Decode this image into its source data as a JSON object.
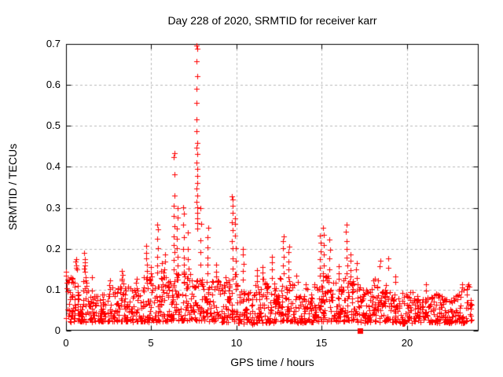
{
  "chart_data": {
    "type": "scatter",
    "title": "Day 228 of 2020, SRMTID for receiver karr",
    "xlabel": "GPS time / hours",
    "ylabel": "SRMTID / TECUs",
    "xlim": [
      0,
      24.2
    ],
    "ylim": [
      0,
      0.7
    ],
    "xticks": [
      0,
      5,
      10,
      15,
      20
    ],
    "xtick_labels": [
      "0",
      "5",
      "10",
      "15",
      "20"
    ],
    "yticks": [
      0,
      0.1,
      0.2,
      0.3,
      0.4,
      0.5,
      0.6,
      0.7
    ],
    "ytick_labels": [
      "0",
      "0.1",
      "0.2",
      "0.3",
      "0.4",
      "0.5",
      "0.6",
      "0.7"
    ],
    "grid": true,
    "legend": "none",
    "marker": "plus",
    "marker_color": "#ff0000",
    "grid_color": "#b9b9b9",
    "axis_color": "#000000",
    "background_color": "#ffffff",
    "outlier_point": {
      "x": 17.25,
      "y": 0,
      "marker": "filled-square",
      "color": "#ff0000"
    },
    "seed": 228,
    "spike_columns_format": "[x_hours, [y_values_TECUs...]]",
    "spike_columns": [
      [
        0.05,
        [
          0.105,
          0.115,
          0.125,
          0.135,
          0.145
        ]
      ],
      [
        0.3,
        [
          0.12,
          0.13
        ]
      ],
      [
        0.6,
        [
          0.148,
          0.154,
          0.161,
          0.168,
          0.173
        ]
      ],
      [
        1.08,
        [
          0.142,
          0.15,
          0.158,
          0.166,
          0.175,
          0.19
        ]
      ],
      [
        2.55,
        [
          0.112,
          0.122
        ]
      ],
      [
        3.3,
        [
          0.125,
          0.135,
          0.148
        ]
      ],
      [
        4.1,
        [
          0.115,
          0.126
        ]
      ],
      [
        4.72,
        [
          0.13,
          0.145,
          0.16,
          0.175,
          0.19,
          0.205
        ]
      ],
      [
        4.95,
        [
          0.125,
          0.14,
          0.155
        ]
      ],
      [
        5.35,
        [
          0.14,
          0.16,
          0.18,
          0.2,
          0.225,
          0.248,
          0.258
        ]
      ],
      [
        5.6,
        [
          0.13,
          0.148,
          0.165
        ]
      ],
      [
        5.78,
        [
          0.132,
          0.15,
          0.168,
          0.185
        ]
      ],
      [
        6.35,
        [
          0.15,
          0.17,
          0.19,
          0.21,
          0.23,
          0.255,
          0.28,
          0.305,
          0.33,
          0.38,
          0.425,
          0.432
        ]
      ],
      [
        6.55,
        [
          0.14,
          0.16,
          0.18,
          0.2,
          0.225,
          0.25,
          0.275,
          0.3
        ]
      ],
      [
        6.9,
        [
          0.14,
          0.16,
          0.18,
          0.2,
          0.23,
          0.26,
          0.285,
          0.302
        ]
      ],
      [
        7.15,
        [
          0.13,
          0.15,
          0.175,
          0.2,
          0.24
        ]
      ],
      [
        7.68,
        [
          0.25,
          0.262,
          0.275,
          0.288,
          0.3,
          0.315,
          0.33,
          0.345,
          0.36,
          0.378,
          0.395,
          0.41,
          0.43,
          0.445,
          0.46,
          0.487,
          0.515,
          0.556,
          0.59,
          0.622,
          0.658,
          0.688,
          0.695
        ]
      ],
      [
        7.9,
        [
          0.16,
          0.19,
          0.22,
          0.26,
          0.3
        ]
      ],
      [
        8.3,
        [
          0.14,
          0.16,
          0.18,
          0.205,
          0.23,
          0.25
        ]
      ],
      [
        8.8,
        [
          0.13,
          0.145,
          0.16
        ]
      ],
      [
        9.4,
        [
          0.118,
          0.13
        ]
      ],
      [
        9.75,
        [
          0.15,
          0.175,
          0.2,
          0.22,
          0.245,
          0.265,
          0.285,
          0.305,
          0.318,
          0.33
        ]
      ],
      [
        9.92,
        [
          0.14,
          0.17,
          0.2,
          0.23,
          0.26,
          0.272
        ]
      ],
      [
        10.4,
        [
          0.125,
          0.145,
          0.165,
          0.185,
          0.2
        ]
      ],
      [
        11.2,
        [
          0.12,
          0.135,
          0.15
        ]
      ],
      [
        11.55,
        [
          0.125,
          0.14,
          0.158
        ]
      ],
      [
        12.1,
        [
          0.13,
          0.15,
          0.168,
          0.182
        ]
      ],
      [
        12.75,
        [
          0.14,
          0.16,
          0.18,
          0.2,
          0.218,
          0.232
        ]
      ],
      [
        13.05,
        [
          0.13,
          0.15,
          0.17,
          0.19,
          0.205
        ]
      ],
      [
        13.55,
        [
          0.12,
          0.133
        ]
      ],
      [
        14.9,
        [
          0.135,
          0.155,
          0.175,
          0.195,
          0.215,
          0.232
        ]
      ],
      [
        15.1,
        [
          0.14,
          0.16,
          0.185,
          0.21,
          0.235,
          0.252
        ]
      ],
      [
        15.45,
        [
          0.13,
          0.15,
          0.175,
          0.2,
          0.222
        ]
      ],
      [
        16.0,
        [
          0.125,
          0.14,
          0.157
        ]
      ],
      [
        16.45,
        [
          0.14,
          0.16,
          0.18,
          0.2,
          0.22,
          0.24,
          0.258
        ]
      ],
      [
        16.7,
        [
          0.13,
          0.15,
          0.17,
          0.188
        ]
      ],
      [
        17.05,
        [
          0.13,
          0.148,
          0.165
        ]
      ],
      [
        18.4,
        [
          0.155,
          0.172
        ]
      ],
      [
        18.9,
        [
          0.152,
          0.178
        ]
      ],
      [
        19.3,
        [
          0.12,
          0.133
        ]
      ],
      [
        21.1,
        [
          0.1,
          0.112
        ]
      ],
      [
        23.2,
        [
          0.098,
          0.105,
          0.112
        ]
      ]
    ],
    "noise_bins_format": "[x_start, x_end, count, y_min, y_max]",
    "noise_bins": [
      [
        0.0,
        0.5,
        34,
        0.022,
        0.13
      ],
      [
        0.5,
        1.0,
        32,
        0.022,
        0.115
      ],
      [
        1.0,
        1.5,
        32,
        0.022,
        0.135
      ],
      [
        1.5,
        2.0,
        30,
        0.022,
        0.1
      ],
      [
        2.0,
        2.5,
        30,
        0.022,
        0.105
      ],
      [
        2.5,
        3.0,
        32,
        0.022,
        0.115
      ],
      [
        3.0,
        3.5,
        32,
        0.022,
        0.125
      ],
      [
        3.5,
        4.0,
        30,
        0.022,
        0.12
      ],
      [
        4.0,
        4.5,
        30,
        0.022,
        0.11
      ],
      [
        4.5,
        5.0,
        32,
        0.022,
        0.135
      ],
      [
        5.0,
        5.5,
        32,
        0.022,
        0.14
      ],
      [
        5.5,
        6.0,
        34,
        0.022,
        0.15
      ],
      [
        6.0,
        6.5,
        34,
        0.025,
        0.15
      ],
      [
        6.5,
        7.0,
        32,
        0.025,
        0.145
      ],
      [
        7.0,
        7.5,
        32,
        0.025,
        0.14
      ],
      [
        7.5,
        8.0,
        32,
        0.025,
        0.15
      ],
      [
        8.0,
        8.5,
        32,
        0.022,
        0.135
      ],
      [
        8.5,
        9.0,
        30,
        0.022,
        0.125
      ],
      [
        9.0,
        9.5,
        30,
        0.02,
        0.12
      ],
      [
        9.5,
        10.0,
        32,
        0.02,
        0.14
      ],
      [
        10.0,
        10.5,
        30,
        0.018,
        0.115
      ],
      [
        10.5,
        11.0,
        30,
        0.015,
        0.1
      ],
      [
        11.0,
        11.5,
        32,
        0.018,
        0.115
      ],
      [
        11.5,
        12.0,
        32,
        0.02,
        0.13
      ],
      [
        12.0,
        12.5,
        32,
        0.02,
        0.125
      ],
      [
        12.5,
        13.0,
        32,
        0.022,
        0.13
      ],
      [
        13.0,
        13.5,
        30,
        0.022,
        0.12
      ],
      [
        13.5,
        14.0,
        30,
        0.02,
        0.11
      ],
      [
        14.0,
        14.5,
        30,
        0.02,
        0.115
      ],
      [
        14.5,
        15.0,
        32,
        0.022,
        0.13
      ],
      [
        15.0,
        15.5,
        34,
        0.022,
        0.135
      ],
      [
        15.5,
        16.0,
        32,
        0.022,
        0.12
      ],
      [
        16.0,
        16.5,
        34,
        0.022,
        0.13
      ],
      [
        16.5,
        17.0,
        34,
        0.022,
        0.125
      ],
      [
        17.0,
        17.5,
        32,
        0.02,
        0.12
      ],
      [
        17.5,
        18.0,
        30,
        0.02,
        0.105
      ],
      [
        18.0,
        18.5,
        34,
        0.022,
        0.13
      ],
      [
        18.5,
        19.0,
        32,
        0.022,
        0.12
      ],
      [
        19.0,
        19.5,
        30,
        0.02,
        0.11
      ],
      [
        19.5,
        20.0,
        30,
        0.018,
        0.1
      ],
      [
        20.0,
        20.5,
        32,
        0.02,
        0.1
      ],
      [
        20.5,
        21.0,
        30,
        0.02,
        0.095
      ],
      [
        21.0,
        21.5,
        32,
        0.02,
        0.1
      ],
      [
        21.5,
        22.0,
        30,
        0.02,
        0.09
      ],
      [
        22.0,
        22.5,
        30,
        0.02,
        0.085
      ],
      [
        22.5,
        23.0,
        32,
        0.02,
        0.09
      ],
      [
        23.0,
        23.5,
        32,
        0.02,
        0.105
      ],
      [
        23.5,
        23.8,
        18,
        0.025,
        0.115
      ]
    ]
  }
}
